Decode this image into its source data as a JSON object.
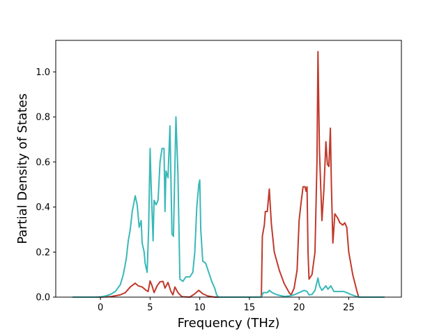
{
  "chart_data": {
    "type": "line",
    "xlabel": "Frequency (THz)",
    "ylabel": "Partial Density of States",
    "xlim": [
      -4.5,
      30.3
    ],
    "ylim": [
      0.0,
      1.14
    ],
    "xticks": [
      0,
      5,
      10,
      15,
      20,
      25
    ],
    "xtick_labels": [
      "0",
      "5",
      "10",
      "15",
      "20",
      "25"
    ],
    "yticks": [
      0.0,
      0.2,
      0.4,
      0.6,
      0.8,
      1.0
    ],
    "ytick_labels": [
      "0.0",
      "0.2",
      "0.4",
      "0.6",
      "0.8",
      "1.0"
    ],
    "grid": false,
    "series": [
      {
        "color": "#c0392b",
        "points": [
          [
            -2.8,
            0.0
          ],
          [
            0.0,
            0.0
          ],
          [
            1.0,
            0.002
          ],
          [
            2.0,
            0.01
          ],
          [
            2.5,
            0.02
          ],
          [
            3.0,
            0.045
          ],
          [
            3.5,
            0.062
          ],
          [
            3.8,
            0.05
          ],
          [
            4.2,
            0.045
          ],
          [
            4.6,
            0.03
          ],
          [
            4.8,
            0.025
          ],
          [
            5.0,
            0.072
          ],
          [
            5.2,
            0.05
          ],
          [
            5.4,
            0.02
          ],
          [
            5.7,
            0.05
          ],
          [
            6.0,
            0.068
          ],
          [
            6.3,
            0.07
          ],
          [
            6.5,
            0.04
          ],
          [
            6.8,
            0.065
          ],
          [
            7.1,
            0.025
          ],
          [
            7.3,
            0.01
          ],
          [
            7.5,
            0.045
          ],
          [
            7.8,
            0.02
          ],
          [
            8.2,
            0.002
          ],
          [
            9.0,
            0.0
          ],
          [
            9.5,
            0.015
          ],
          [
            9.9,
            0.03
          ],
          [
            10.3,
            0.015
          ],
          [
            10.8,
            0.005
          ],
          [
            11.5,
            0.0
          ],
          [
            16.2,
            0.0
          ],
          [
            16.3,
            0.27
          ],
          [
            16.5,
            0.32
          ],
          [
            16.6,
            0.38
          ],
          [
            16.8,
            0.38
          ],
          [
            17.0,
            0.48
          ],
          [
            17.2,
            0.33
          ],
          [
            17.5,
            0.2
          ],
          [
            18.0,
            0.12
          ],
          [
            18.5,
            0.06
          ],
          [
            19.0,
            0.02
          ],
          [
            19.2,
            0.01
          ],
          [
            19.5,
            0.04
          ],
          [
            19.8,
            0.12
          ],
          [
            20.0,
            0.34
          ],
          [
            20.2,
            0.42
          ],
          [
            20.4,
            0.49
          ],
          [
            20.6,
            0.49
          ],
          [
            20.7,
            0.47
          ],
          [
            20.8,
            0.49
          ],
          [
            20.9,
            0.2
          ],
          [
            21.0,
            0.08
          ],
          [
            21.3,
            0.1
          ],
          [
            21.6,
            0.2
          ],
          [
            21.8,
            0.6
          ],
          [
            21.9,
            1.09
          ],
          [
            22.05,
            0.65
          ],
          [
            22.3,
            0.34
          ],
          [
            22.5,
            0.48
          ],
          [
            22.7,
            0.69
          ],
          [
            22.85,
            0.59
          ],
          [
            23.0,
            0.58
          ],
          [
            23.15,
            0.75
          ],
          [
            23.25,
            0.5
          ],
          [
            23.4,
            0.24
          ],
          [
            23.6,
            0.37
          ],
          [
            23.9,
            0.35
          ],
          [
            24.1,
            0.33
          ],
          [
            24.4,
            0.32
          ],
          [
            24.6,
            0.33
          ],
          [
            24.8,
            0.31
          ],
          [
            25.0,
            0.2
          ],
          [
            25.4,
            0.1
          ],
          [
            25.8,
            0.03
          ],
          [
            26.0,
            0.0
          ],
          [
            28.6,
            0.0
          ]
        ]
      },
      {
        "color": "#3ab8b8",
        "points": [
          [
            -2.8,
            0.0
          ],
          [
            -0.5,
            0.0
          ],
          [
            0.0,
            0.001
          ],
          [
            0.5,
            0.005
          ],
          [
            1.0,
            0.012
          ],
          [
            1.5,
            0.025
          ],
          [
            2.0,
            0.055
          ],
          [
            2.3,
            0.1
          ],
          [
            2.6,
            0.17
          ],
          [
            2.8,
            0.25
          ],
          [
            3.0,
            0.3
          ],
          [
            3.2,
            0.38
          ],
          [
            3.5,
            0.45
          ],
          [
            3.7,
            0.41
          ],
          [
            3.9,
            0.31
          ],
          [
            4.1,
            0.34
          ],
          [
            4.2,
            0.24
          ],
          [
            4.4,
            0.2
          ],
          [
            4.5,
            0.15
          ],
          [
            4.7,
            0.11
          ],
          [
            4.85,
            0.3
          ],
          [
            5.0,
            0.66
          ],
          [
            5.1,
            0.5
          ],
          [
            5.3,
            0.25
          ],
          [
            5.4,
            0.43
          ],
          [
            5.6,
            0.41
          ],
          [
            5.8,
            0.43
          ],
          [
            6.0,
            0.6
          ],
          [
            6.2,
            0.66
          ],
          [
            6.4,
            0.66
          ],
          [
            6.5,
            0.38
          ],
          [
            6.6,
            0.56
          ],
          [
            6.8,
            0.53
          ],
          [
            7.0,
            0.76
          ],
          [
            7.2,
            0.28
          ],
          [
            7.35,
            0.27
          ],
          [
            7.6,
            0.8
          ],
          [
            7.8,
            0.55
          ],
          [
            8.0,
            0.08
          ],
          [
            8.3,
            0.07
          ],
          [
            8.6,
            0.09
          ],
          [
            9.0,
            0.09
          ],
          [
            9.3,
            0.11
          ],
          [
            9.5,
            0.2
          ],
          [
            9.7,
            0.4
          ],
          [
            9.9,
            0.5
          ],
          [
            10.0,
            0.52
          ],
          [
            10.1,
            0.3
          ],
          [
            10.3,
            0.16
          ],
          [
            10.6,
            0.15
          ],
          [
            10.9,
            0.11
          ],
          [
            11.2,
            0.07
          ],
          [
            11.5,
            0.04
          ],
          [
            11.7,
            0.01
          ],
          [
            11.9,
            0.0
          ],
          [
            16.2,
            0.0
          ],
          [
            16.4,
            0.02
          ],
          [
            16.8,
            0.02
          ],
          [
            17.0,
            0.03
          ],
          [
            17.3,
            0.02
          ],
          [
            17.8,
            0.01
          ],
          [
            18.5,
            0.003
          ],
          [
            19.0,
            0.005
          ],
          [
            19.5,
            0.01
          ],
          [
            20.0,
            0.02
          ],
          [
            20.5,
            0.03
          ],
          [
            20.8,
            0.025
          ],
          [
            21.0,
            0.01
          ],
          [
            21.3,
            0.012
          ],
          [
            21.6,
            0.03
          ],
          [
            21.9,
            0.085
          ],
          [
            22.05,
            0.05
          ],
          [
            22.3,
            0.03
          ],
          [
            22.7,
            0.05
          ],
          [
            22.9,
            0.035
          ],
          [
            23.2,
            0.05
          ],
          [
            23.5,
            0.025
          ],
          [
            24.0,
            0.025
          ],
          [
            24.5,
            0.025
          ],
          [
            24.8,
            0.02
          ],
          [
            25.3,
            0.01
          ],
          [
            25.8,
            0.003
          ],
          [
            26.0,
            0.0
          ],
          [
            28.6,
            0.0
          ]
        ]
      }
    ]
  }
}
